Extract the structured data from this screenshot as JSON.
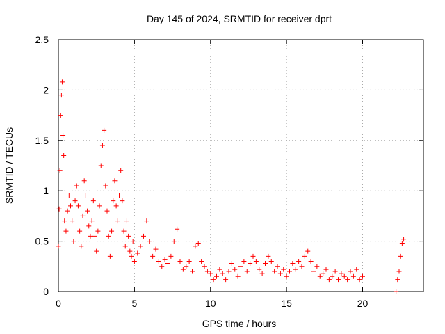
{
  "chart_data": {
    "type": "scatter",
    "title": "Day 145 of 2024, SRMTID for receiver dprt",
    "xlabel": "GPS time / hours",
    "ylabel": "SRMTID / TECUs",
    "xlim": [
      0,
      24
    ],
    "ylim": [
      0,
      2.5
    ],
    "xticks": [
      0,
      5,
      10,
      15,
      20
    ],
    "xtick_labels": [
      "0",
      "5",
      "10",
      "15",
      "20"
    ],
    "yticks": [
      0,
      0.5,
      1,
      1.5,
      2,
      2.5
    ],
    "ytick_labels": [
      "0",
      "0.5",
      "1",
      "1.5",
      "2",
      "2.5"
    ],
    "grid": true,
    "marker": "+",
    "color": "#ff0000",
    "series": [
      {
        "name": "SRMTID",
        "x": [
          0.0,
          0.05,
          0.1,
          0.15,
          0.2,
          0.25,
          0.3,
          0.35,
          0.4,
          0.5,
          0.6,
          0.7,
          0.8,
          0.9,
          1.0,
          1.1,
          1.2,
          1.3,
          1.4,
          1.5,
          1.6,
          1.7,
          1.8,
          1.9,
          2.0,
          2.1,
          2.2,
          2.3,
          2.4,
          2.5,
          2.6,
          2.7,
          2.8,
          2.9,
          3.0,
          3.1,
          3.2,
          3.3,
          3.4,
          3.5,
          3.6,
          3.7,
          3.8,
          3.9,
          4.0,
          4.1,
          4.2,
          4.3,
          4.4,
          4.5,
          4.6,
          4.7,
          4.8,
          4.9,
          5.0,
          5.2,
          5.4,
          5.6,
          5.8,
          6.0,
          6.2,
          6.4,
          6.6,
          6.8,
          7.0,
          7.2,
          7.4,
          7.6,
          7.8,
          8.0,
          8.2,
          8.4,
          8.6,
          8.8,
          9.0,
          9.2,
          9.4,
          9.6,
          9.8,
          10.0,
          10.2,
          10.4,
          10.6,
          10.8,
          11.0,
          11.2,
          11.4,
          11.6,
          11.8,
          12.0,
          12.2,
          12.4,
          12.6,
          12.8,
          13.0,
          13.2,
          13.4,
          13.6,
          13.8,
          14.0,
          14.2,
          14.4,
          14.6,
          14.8,
          15.0,
          15.2,
          15.4,
          15.6,
          15.8,
          16.0,
          16.2,
          16.4,
          16.6,
          16.8,
          17.0,
          17.2,
          17.4,
          17.6,
          17.8,
          18.0,
          18.2,
          18.4,
          18.6,
          18.8,
          19.0,
          19.2,
          19.4,
          19.6,
          19.8,
          20.0,
          22.2,
          22.3,
          22.4,
          22.5,
          22.6,
          22.7
        ],
        "y": [
          0.45,
          0.82,
          1.2,
          1.75,
          1.95,
          2.08,
          1.55,
          1.35,
          0.7,
          0.6,
          0.8,
          0.95,
          0.85,
          0.7,
          0.5,
          0.9,
          1.05,
          0.85,
          0.6,
          0.45,
          0.75,
          1.1,
          0.95,
          0.8,
          0.65,
          0.55,
          0.7,
          0.9,
          0.55,
          0.4,
          0.6,
          0.85,
          1.25,
          1.45,
          1.6,
          1.05,
          0.8,
          0.55,
          0.35,
          0.6,
          0.9,
          1.1,
          0.85,
          0.7,
          0.95,
          1.2,
          0.9,
          0.6,
          0.45,
          0.7,
          0.55,
          0.4,
          0.35,
          0.5,
          0.3,
          0.38,
          0.45,
          0.55,
          0.7,
          0.5,
          0.35,
          0.42,
          0.3,
          0.25,
          0.32,
          0.28,
          0.35,
          0.5,
          0.62,
          0.3,
          0.22,
          0.25,
          0.3,
          0.2,
          0.45,
          0.48,
          0.3,
          0.25,
          0.2,
          0.18,
          0.12,
          0.15,
          0.22,
          0.18,
          0.12,
          0.2,
          0.28,
          0.22,
          0.15,
          0.25,
          0.3,
          0.2,
          0.28,
          0.35,
          0.3,
          0.22,
          0.18,
          0.28,
          0.35,
          0.3,
          0.2,
          0.25,
          0.18,
          0.22,
          0.15,
          0.2,
          0.28,
          0.22,
          0.3,
          0.25,
          0.35,
          0.4,
          0.3,
          0.2,
          0.25,
          0.15,
          0.18,
          0.22,
          0.12,
          0.15,
          0.2,
          0.12,
          0.18,
          0.15,
          0.12,
          0.2,
          0.15,
          0.22,
          0.12,
          0.15,
          0.0,
          0.12,
          0.2,
          0.35,
          0.48,
          0.52
        ]
      }
    ]
  }
}
